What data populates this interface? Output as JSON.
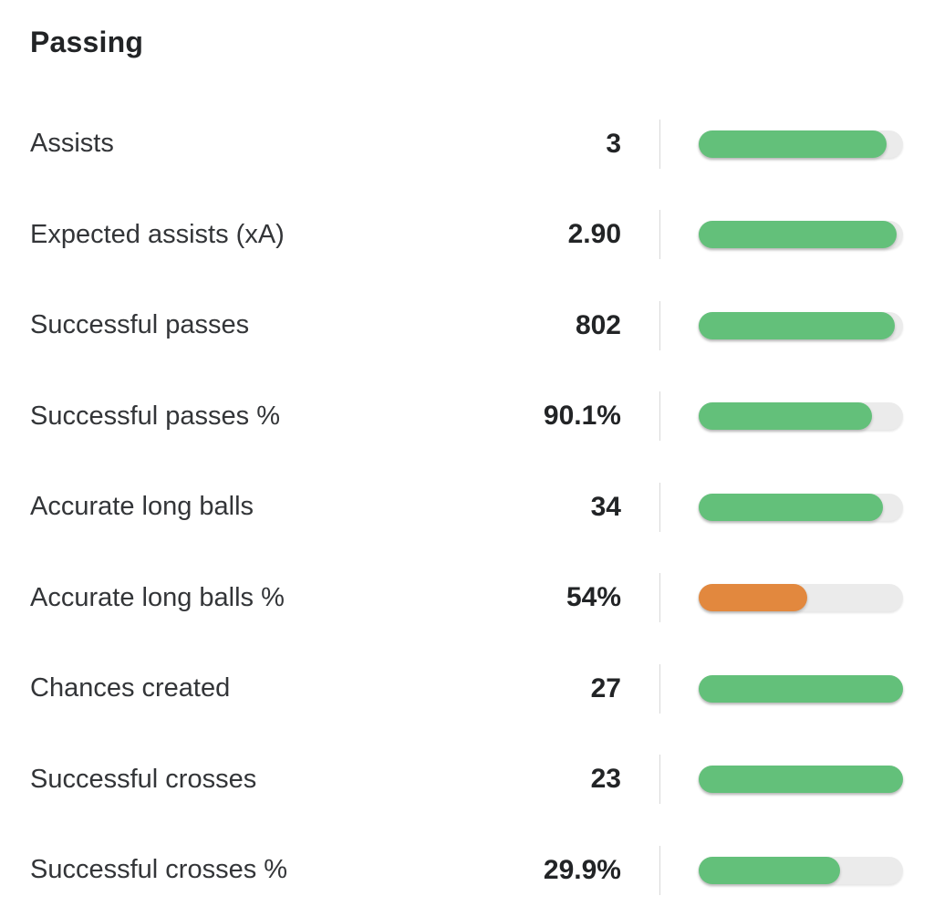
{
  "section": {
    "title": "Passing"
  },
  "colors": {
    "green": "#63c07a",
    "orange": "#e2883e",
    "track": "#ebebeb",
    "divider": "#d8d8d8"
  },
  "rows": [
    {
      "label": "Assists",
      "value": "3",
      "fill_percent": 92,
      "color": "green"
    },
    {
      "label": "Expected assists (xA)",
      "value": "2.90",
      "fill_percent": 97,
      "color": "green"
    },
    {
      "label": "Successful passes",
      "value": "802",
      "fill_percent": 96,
      "color": "green"
    },
    {
      "label": "Successful passes %",
      "value": "90.1%",
      "fill_percent": 85,
      "color": "green"
    },
    {
      "label": "Accurate long balls",
      "value": "34",
      "fill_percent": 90,
      "color": "green"
    },
    {
      "label": "Accurate long balls %",
      "value": "54%",
      "fill_percent": 53,
      "color": "orange"
    },
    {
      "label": "Chances created",
      "value": "27",
      "fill_percent": 100,
      "color": "green"
    },
    {
      "label": "Successful crosses",
      "value": "23",
      "fill_percent": 100,
      "color": "green"
    },
    {
      "label": "Successful crosses %",
      "value": "29.9%",
      "fill_percent": 69,
      "color": "green"
    }
  ]
}
